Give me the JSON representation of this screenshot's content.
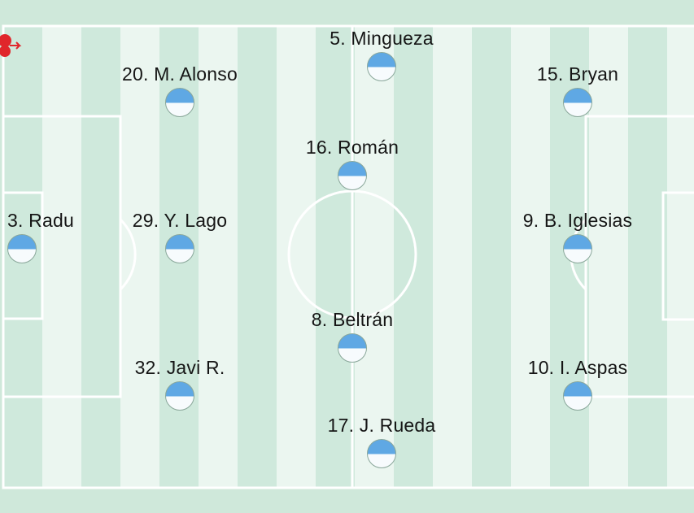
{
  "colors": {
    "stripe_dark": "#cfe9dc",
    "stripe_light": "#ebf6f0",
    "lines": "#ffffff",
    "shirt_top": "#5fa8e4",
    "shirt_bottom": "#f7fbfd",
    "logo": "#e0262b"
  },
  "logo": {
    "icon": "club-crest-icon"
  },
  "players": [
    {
      "label": "5. Mingueza"
    },
    {
      "label": "20. M. Alonso"
    },
    {
      "label": "15. Bryan"
    },
    {
      "label": "16. Román"
    },
    {
      "label": "3. Radu"
    },
    {
      "label": "29. Y. Lago"
    },
    {
      "label": "9. B. Iglesias"
    },
    {
      "label": "8. Beltrán"
    },
    {
      "label": "32. Javi R."
    },
    {
      "label": "10. I. Aspas"
    },
    {
      "label": "17. J. Rueda"
    }
  ]
}
